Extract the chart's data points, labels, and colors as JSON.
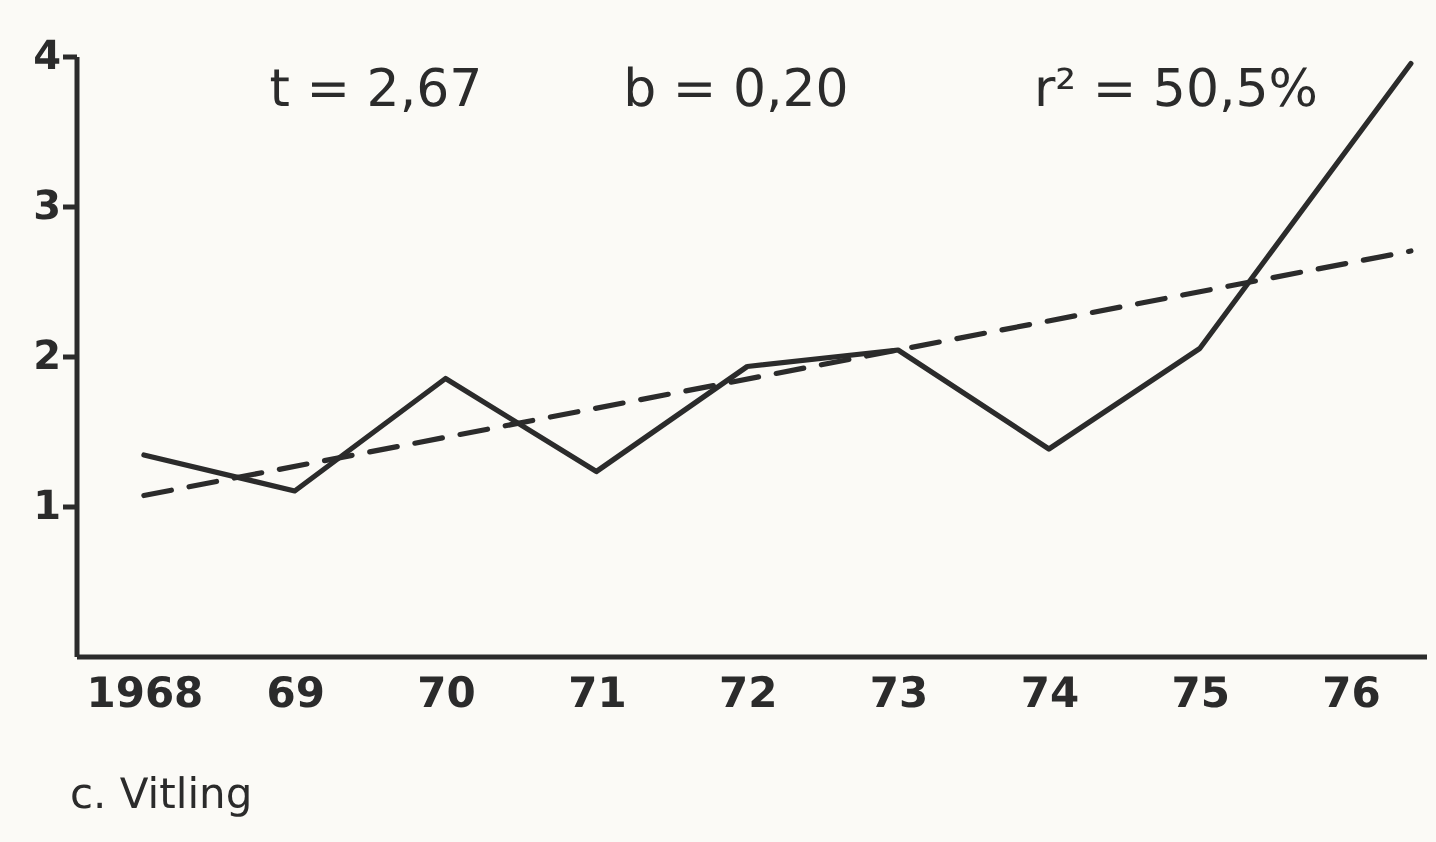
{
  "chart_data": {
    "type": "line",
    "annotations": [
      "t = 2,67",
      "b = 0,20",
      "r² = 50,5%",
      "c.    Vitling"
    ],
    "xlim": [
      1967.55,
      1976.5
    ],
    "xticks": [
      {
        "value": 1968,
        "label": "1968"
      },
      {
        "value": 1969,
        "label": "69"
      },
      {
        "value": 1970,
        "label": "70"
      },
      {
        "value": 1971,
        "label": "71"
      },
      {
        "value": 1972,
        "label": "72"
      },
      {
        "value": 1973,
        "label": "73"
      },
      {
        "value": 1974,
        "label": "74"
      },
      {
        "value": 1975,
        "label": "75"
      },
      {
        "value": 1976,
        "label": "76"
      }
    ],
    "ylim": [
      0,
      4
    ],
    "yticks": [
      1,
      2,
      3,
      4
    ],
    "grid": false,
    "marker": "none",
    "series": [
      {
        "color": "#2b2b2b",
        "line_style": "solid",
        "x": [
          1968,
          1969,
          1970,
          1971,
          1972,
          1973,
          1974,
          1975,
          1976.4
        ],
        "values": [
          1.34,
          1.1,
          1.85,
          1.23,
          1.93,
          2.04,
          1.38,
          2.05,
          3.95
        ]
      },
      {
        "type": "line",
        "color": "#2b2b2b",
        "line_style": "dashed",
        "x": [
          1968,
          1976.4
        ],
        "values": [
          1.07,
          2.7
        ]
      }
    ]
  }
}
